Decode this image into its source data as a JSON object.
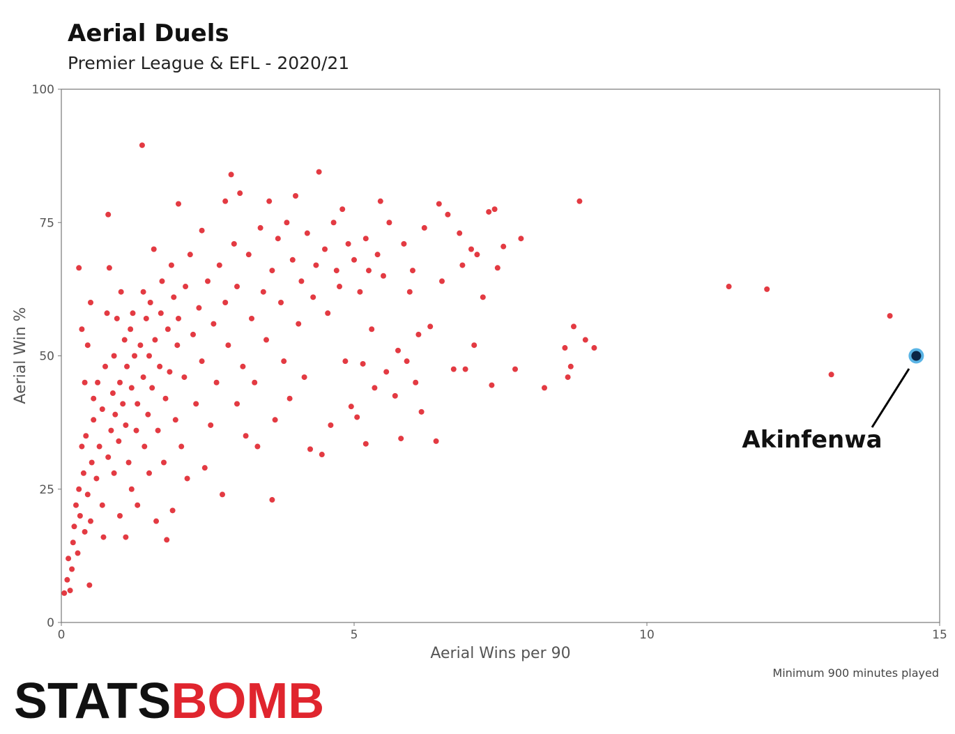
{
  "chart_data": {
    "type": "scatter",
    "title": "Aerial Duels",
    "subtitle": "Premier League & EFL - 2020/21",
    "x_label": "Aerial Wins per 90",
    "y_label": "Aerial Win %",
    "note": "Minimum 900 minutes played",
    "color": "#e0252e",
    "xlim": [
      0,
      15
    ],
    "ylim": [
      0,
      100
    ],
    "xticks": [
      0,
      5,
      10,
      15
    ],
    "yticks": [
      0,
      25,
      50,
      75,
      100
    ],
    "grid": false,
    "x": [
      0.05,
      0.1,
      0.12,
      0.15,
      0.18,
      0.2,
      0.22,
      0.25,
      0.28,
      0.3,
      0.32,
      0.35,
      0.38,
      0.4,
      0.42,
      0.45,
      0.48,
      0.5,
      0.52,
      0.55,
      0.3,
      0.35,
      0.4,
      0.45,
      0.5,
      0.55,
      0.6,
      0.62,
      0.65,
      0.7,
      0.7,
      0.72,
      0.75,
      0.78,
      0.8,
      0.8,
      0.82,
      0.85,
      0.88,
      0.9,
      0.9,
      0.92,
      0.95,
      0.98,
      1.0,
      1.0,
      1.02,
      1.05,
      1.08,
      1.1,
      1.1,
      1.12,
      1.15,
      1.18,
      1.2,
      1.2,
      1.22,
      1.25,
      1.28,
      1.3,
      1.3,
      1.35,
      1.38,
      1.4,
      1.4,
      1.42,
      1.45,
      1.48,
      1.5,
      1.5,
      1.52,
      1.55,
      1.58,
      1.6,
      1.62,
      1.65,
      1.68,
      1.7,
      1.72,
      1.75,
      1.78,
      1.8,
      1.82,
      1.85,
      1.88,
      1.9,
      1.92,
      1.95,
      1.98,
      2.0,
      2.0,
      2.05,
      2.1,
      2.12,
      2.15,
      2.2,
      2.25,
      2.3,
      2.35,
      2.4,
      2.4,
      2.45,
      2.5,
      2.55,
      2.6,
      2.65,
      2.7,
      2.75,
      2.8,
      2.8,
      2.85,
      2.9,
      2.95,
      3.0,
      3.0,
      3.05,
      3.1,
      3.15,
      3.2,
      3.25,
      3.3,
      3.35,
      3.4,
      3.45,
      3.5,
      3.55,
      3.6,
      3.6,
      3.65,
      3.7,
      3.75,
      3.8,
      3.85,
      3.9,
      3.95,
      4.0,
      4.05,
      4.1,
      4.15,
      4.2,
      4.25,
      4.3,
      4.35,
      4.4,
      4.45,
      4.5,
      4.55,
      4.6,
      4.65,
      4.7,
      4.75,
      4.8,
      4.85,
      4.9,
      4.95,
      5.0,
      5.05,
      5.1,
      5.15,
      5.2,
      5.2,
      5.25,
      5.3,
      5.35,
      5.4,
      5.45,
      5.5,
      5.55,
      5.6,
      5.7,
      5.75,
      5.8,
      5.85,
      5.9,
      5.95,
      6.0,
      6.05,
      6.1,
      6.15,
      6.2,
      6.3,
      6.4,
      6.45,
      6.5,
      6.6,
      6.7,
      6.8,
      6.85,
      6.9,
      7.0,
      7.05,
      7.1,
      7.2,
      7.3,
      7.35,
      7.4,
      7.45,
      7.55,
      7.75,
      7.85,
      8.25,
      8.6,
      8.65,
      8.7,
      8.75,
      8.85,
      8.95,
      9.1,
      11.4,
      12.05,
      13.15,
      14.15
    ],
    "values": [
      5.5,
      8,
      12,
      6,
      10,
      15,
      18,
      22,
      13,
      25,
      20,
      33,
      28,
      17,
      35,
      24,
      7,
      19,
      30,
      42,
      66.5,
      55,
      45,
      52,
      60,
      38,
      27,
      45,
      33,
      40,
      22,
      16,
      48,
      58,
      31,
      76.5,
      66.5,
      36,
      43,
      28,
      50,
      39,
      57,
      34,
      20,
      45,
      62,
      41,
      53,
      37,
      16,
      48,
      30,
      55,
      25,
      44,
      58,
      50,
      36,
      41,
      22,
      52,
      89.5,
      46,
      62,
      33,
      57,
      39,
      50,
      28,
      60,
      44,
      70,
      53,
      19,
      36,
      48,
      58,
      64,
      30,
      42,
      15.5,
      55,
      47,
      67,
      21,
      61,
      38,
      52,
      78.5,
      57,
      33,
      46,
      63,
      27,
      69,
      54,
      41,
      59,
      73.5,
      49,
      29,
      64,
      37,
      56,
      45,
      67,
      24,
      60,
      79,
      52,
      84,
      71,
      41,
      63,
      80.5,
      48,
      35,
      69,
      57,
      45,
      33,
      74,
      62,
      53,
      79,
      66,
      23,
      38,
      72,
      60,
      49,
      75,
      42,
      68,
      80,
      56,
      64,
      46,
      73,
      32.5,
      61,
      67,
      84.5,
      31.5,
      70,
      58,
      37,
      75,
      66,
      63,
      77.5,
      49,
      71,
      40.5,
      68,
      38.5,
      62,
      48.5,
      33.5,
      72,
      66,
      55,
      44,
      69,
      79,
      65,
      47,
      75,
      42.5,
      51,
      34.5,
      71,
      49,
      62,
      66,
      45,
      54,
      39.5,
      74,
      55.5,
      34,
      78.5,
      64,
      76.5,
      47.5,
      73,
      67,
      47.5,
      70,
      52,
      69,
      61,
      77,
      44.5,
      77.5,
      66.5,
      70.5,
      47.5,
      72,
      44,
      51.5,
      46,
      48,
      55.5,
      79,
      53,
      51.5,
      63,
      62.5,
      46.5,
      57.5
    ],
    "highlight": {
      "label": "Akinfenwa",
      "x": 14.6,
      "value": 50,
      "color": "#0b2545",
      "edge_color": "#5ab4e5"
    }
  },
  "logo": {
    "left": "STATS",
    "right": "BOMB"
  }
}
